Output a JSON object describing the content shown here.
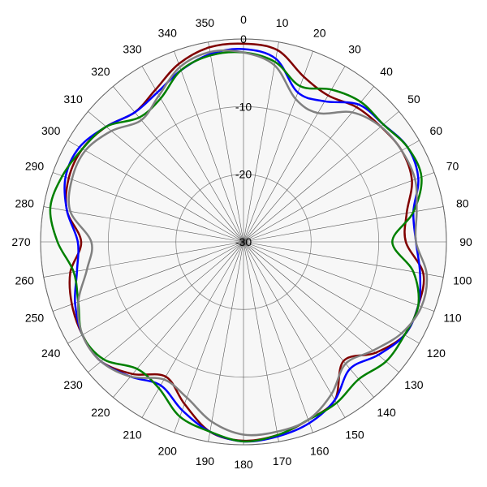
{
  "chart_data": {
    "type": "polar-line",
    "title": "",
    "angle_unit": "degrees",
    "angle_ticks": [
      0,
      10,
      20,
      30,
      40,
      50,
      60,
      70,
      80,
      90,
      100,
      110,
      120,
      130,
      140,
      150,
      160,
      170,
      180,
      190,
      200,
      210,
      220,
      230,
      240,
      250,
      260,
      270,
      280,
      290,
      300,
      310,
      320,
      330,
      340,
      350
    ],
    "radial_ticks": [
      0,
      -10,
      -20,
      -30
    ],
    "radial_tick_labels": [
      "0",
      "-10",
      "-20",
      "-30"
    ],
    "rlim": [
      -30,
      0
    ],
    "grid": true,
    "legend": "none",
    "series": [
      {
        "color": "#800000",
        "angles": [
          0,
          10,
          20,
          30,
          40,
          50,
          60,
          70,
          80,
          90,
          100,
          110,
          120,
          130,
          140,
          150,
          160,
          170,
          180,
          190,
          200,
          210,
          220,
          230,
          240,
          250,
          260,
          270,
          280,
          290,
          300,
          310,
          320,
          330,
          340,
          350
        ],
        "values": [
          -0.7,
          -1.2,
          -4.0,
          -5.0,
          -4.0,
          -3.5,
          -3.0,
          -3.5,
          -5.5,
          -6.0,
          -3.0,
          -2.5,
          -2.5,
          -4.5,
          -7.0,
          -3.0,
          -2.0,
          -1.0,
          -0.6,
          -1.5,
          -4.5,
          -7.0,
          -4.5,
          -2.5,
          -2.5,
          -3.0,
          -4.0,
          -6.0,
          -3.5,
          -2.5,
          -2.5,
          -3.5,
          -5.0,
          -4.0,
          -2.0,
          -0.8
        ]
      },
      {
        "color": "#0000ff",
        "angles": [
          0,
          10,
          20,
          30,
          40,
          50,
          60,
          70,
          80,
          90,
          100,
          110,
          120,
          130,
          140,
          150,
          160,
          170,
          180,
          190,
          200,
          210,
          220,
          230,
          240,
          250,
          260,
          270,
          280,
          290,
          300,
          310,
          320,
          330,
          340,
          350
        ],
        "values": [
          -1.5,
          -2.5,
          -6.5,
          -6.0,
          -3.5,
          -3.0,
          -2.0,
          -2.5,
          -4.5,
          -4.5,
          -3.5,
          -2.5,
          -2.5,
          -4.0,
          -5.5,
          -3.0,
          -1.5,
          -0.8,
          -0.5,
          -1.5,
          -3.5,
          -5.5,
          -4.0,
          -2.5,
          -2.5,
          -3.5,
          -5.0,
          -5.5,
          -3.5,
          -2.0,
          -2.0,
          -3.5,
          -5.0,
          -4.5,
          -3.0,
          -1.8
        ]
      },
      {
        "color": "#008000",
        "angles": [
          0,
          10,
          20,
          30,
          40,
          50,
          60,
          70,
          80,
          90,
          100,
          110,
          120,
          130,
          140,
          150,
          160,
          170,
          180,
          190,
          200,
          210,
          220,
          230,
          240,
          250,
          260,
          270,
          280,
          290,
          300,
          310,
          320,
          330,
          340,
          350
        ],
        "values": [
          -2.0,
          -3.0,
          -5.5,
          -4.0,
          -3.0,
          -3.0,
          -2.0,
          -2.0,
          -4.5,
          -8.0,
          -4.5,
          -2.5,
          -2.5,
          -2.5,
          -3.5,
          -2.5,
          -2.0,
          -1.0,
          -0.5,
          -1.5,
          -2.5,
          -5.0,
          -5.5,
          -3.0,
          -2.5,
          -4.0,
          -4.5,
          -2.5,
          -1.0,
          -1.5,
          -2.5,
          -3.5,
          -6.0,
          -5.5,
          -3.0,
          -2.0
        ]
      },
      {
        "color": "#808080",
        "angles": [
          0,
          10,
          20,
          30,
          40,
          50,
          60,
          70,
          80,
          90,
          100,
          110,
          120,
          130,
          140,
          150,
          160,
          170,
          180,
          190,
          200,
          210,
          220,
          230,
          240,
          250,
          260,
          270,
          280,
          290,
          300,
          310,
          320,
          330,
          340,
          350
        ],
        "values": [
          -2.0,
          -3.5,
          -7.5,
          -8.0,
          -5.0,
          -3.5,
          -3.0,
          -3.0,
          -4.0,
          -4.5,
          -2.5,
          -2.0,
          -3.0,
          -5.0,
          -6.5,
          -4.0,
          -2.0,
          -1.5,
          -1.5,
          -3.0,
          -5.5,
          -6.5,
          -4.0,
          -2.5,
          -2.5,
          -4.0,
          -6.5,
          -7.5,
          -4.0,
          -3.0,
          -3.0,
          -4.5,
          -6.5,
          -5.0,
          -2.5,
          -1.5
        ]
      }
    ]
  }
}
